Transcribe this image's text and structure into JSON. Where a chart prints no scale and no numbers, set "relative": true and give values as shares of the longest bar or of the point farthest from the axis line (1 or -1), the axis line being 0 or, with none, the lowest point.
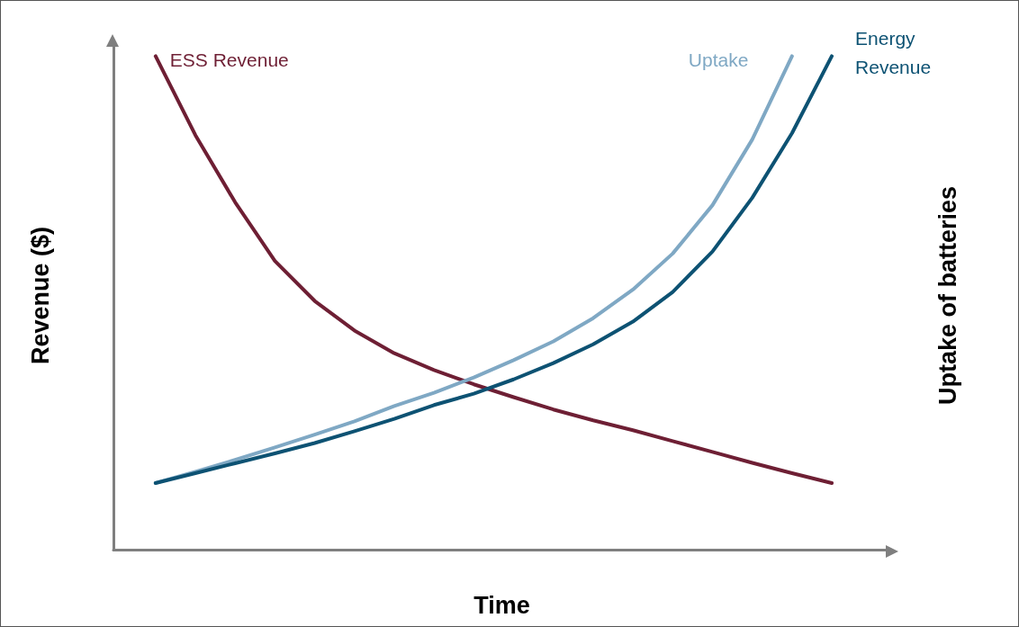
{
  "chart_data": {
    "type": "line",
    "relative": true,
    "xlabel": "Time",
    "ylabel": "Revenue ($)",
    "y2label": "Uptake of batteries",
    "categories": [
      null,
      null,
      null,
      null,
      null,
      null,
      null,
      null,
      null,
      null,
      null,
      null,
      null,
      null,
      null,
      null,
      null,
      null
    ],
    "legend": false,
    "grid": false,
    "marker": "none",
    "line_style": "solid",
    "series": [
      {
        "name": "ESS Revenue",
        "color": "#6e1f34",
        "values": [
          1.0,
          0.84,
          0.704,
          0.585,
          0.504,
          0.444,
          0.398,
          0.364,
          0.335,
          0.309,
          0.284,
          0.262,
          0.242,
          0.22,
          0.198,
          0.176,
          0.155,
          0.135
        ]
      },
      {
        "name": "Uptake",
        "color": "#7fa8c4",
        "values": [
          0.135,
          0.158,
          0.182,
          0.207,
          0.233,
          0.26,
          0.291,
          0.318,
          0.349,
          0.384,
          0.422,
          0.469,
          0.527,
          0.6,
          0.698,
          0.831,
          1.0,
          null
        ]
      },
      {
        "name": "Energy Revenue",
        "color": "#0d5273",
        "values": [
          0.135,
          0.155,
          0.175,
          0.195,
          0.216,
          0.24,
          0.265,
          0.293,
          0.316,
          0.345,
          0.378,
          0.416,
          0.462,
          0.522,
          0.604,
          0.713,
          0.844,
          1.0
        ]
      }
    ]
  }
}
